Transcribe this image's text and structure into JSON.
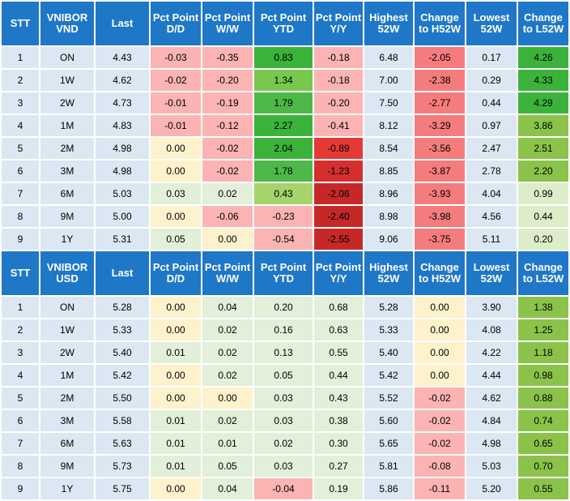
{
  "headers_vnd": [
    "STT",
    "VNIBOR VND",
    "Last",
    "Pct Point D/D",
    "Pct Point W/W",
    "Pct Point YTD",
    "Pct Point Y/Y",
    "Highest 52W",
    "Change to H52W",
    "Lowest 52W",
    "Change to L52W"
  ],
  "headers_usd": [
    "STT",
    "VNIBOR USD",
    "Last",
    "Pct Point D/D",
    "Pct Point W/W",
    "Pct Point YTD",
    "Pct Point Y/Y",
    "Highest 52W",
    "Change to H52W",
    "Lowest 52W",
    "Change to L52W"
  ],
  "header_color": "#1f77c7",
  "label_color": "#dbe7f3",
  "vnd_rows": [
    {
      "stt": "1",
      "tenor": "ON",
      "last": "4.43",
      "dd": "-0.03",
      "ww": "-0.35",
      "ytd": "0.83",
      "yy": "-0.18",
      "h52": "6.48",
      "ch52": "-2.05",
      "l52": "0.17",
      "cl52": "4.26"
    },
    {
      "stt": "2",
      "tenor": "1W",
      "last": "4.62",
      "dd": "-0.02",
      "ww": "-0.20",
      "ytd": "1.34",
      "yy": "-0.18",
      "h52": "7.00",
      "ch52": "-2.38",
      "l52": "0.29",
      "cl52": "4.33"
    },
    {
      "stt": "3",
      "tenor": "2W",
      "last": "4.73",
      "dd": "-0.01",
      "ww": "-0.19",
      "ytd": "1.79",
      "yy": "-0.20",
      "h52": "7.50",
      "ch52": "-2.77",
      "l52": "0.44",
      "cl52": "4.29"
    },
    {
      "stt": "4",
      "tenor": "1M",
      "last": "4.83",
      "dd": "-0.01",
      "ww": "-0.12",
      "ytd": "2.27",
      "yy": "-0.41",
      "h52": "8.12",
      "ch52": "-3.29",
      "l52": "0.97",
      "cl52": "3.86"
    },
    {
      "stt": "5",
      "tenor": "2M",
      "last": "4.98",
      "dd": "0.00",
      "ww": "-0.02",
      "ytd": "2.04",
      "yy": "-0.89",
      "h52": "8.54",
      "ch52": "-3.56",
      "l52": "2.47",
      "cl52": "2.51"
    },
    {
      "stt": "6",
      "tenor": "3M",
      "last": "4.98",
      "dd": "0.00",
      "ww": "-0.02",
      "ytd": "1.78",
      "yy": "-1.23",
      "h52": "8.85",
      "ch52": "-3.87",
      "l52": "2.78",
      "cl52": "2.20"
    },
    {
      "stt": "7",
      "tenor": "6M",
      "last": "5.03",
      "dd": "0.03",
      "ww": "0.02",
      "ytd": "0.43",
      "yy": "-2.06",
      "h52": "8.96",
      "ch52": "-3.93",
      "l52": "4.04",
      "cl52": "0.99"
    },
    {
      "stt": "8",
      "tenor": "9M",
      "last": "5.00",
      "dd": "0.00",
      "ww": "-0.06",
      "ytd": "-0.23",
      "yy": "-2.40",
      "h52": "8.98",
      "ch52": "-3.98",
      "l52": "4.56",
      "cl52": "0.44"
    },
    {
      "stt": "9",
      "tenor": "1Y",
      "last": "5.31",
      "dd": "0.05",
      "ww": "0.00",
      "ytd": "-0.54",
      "yy": "-2.55",
      "h52": "9.06",
      "ch52": "-3.75",
      "l52": "5.11",
      "cl52": "0.20"
    }
  ],
  "vnd_colors": [
    {
      "dd": "#fbb3b3",
      "ww": "#fbb3b3",
      "ytd": "#3bb33b",
      "yy": "#fbb3b3",
      "ch52": "#f47c7c",
      "cl52": "#3bb33b"
    },
    {
      "dd": "#fbb3b3",
      "ww": "#fbb3b3",
      "ytd": "#78c850",
      "yy": "#fbb3b3",
      "ch52": "#f47c7c",
      "cl52": "#3bb33b"
    },
    {
      "dd": "#fbb3b3",
      "ww": "#fbb3b3",
      "ytd": "#4db848",
      "yy": "#fbb3b3",
      "ch52": "#f47c7c",
      "cl52": "#3bb33b"
    },
    {
      "dd": "#fbb3b3",
      "ww": "#fbb3b3",
      "ytd": "#3bb33b",
      "yy": "#fbb3b3",
      "ch52": "#f47c7c",
      "cl52": "#8bc34a"
    },
    {
      "dd": "#fdf2cc",
      "ww": "#fbb3b3",
      "ytd": "#3bb33b",
      "yy": "#e53935",
      "ch52": "#f47c7c",
      "cl52": "#8bc34a"
    },
    {
      "dd": "#fdf2cc",
      "ww": "#fbb3b3",
      "ytd": "#4db848",
      "yy": "#d32f2f",
      "ch52": "#f47c7c",
      "cl52": "#8bc34a"
    },
    {
      "dd": "#e2efd9",
      "ww": "#e2efd9",
      "ytd": "#a5d46a",
      "yy": "#c62828",
      "ch52": "#f47c7c",
      "cl52": "#dcedc8"
    },
    {
      "dd": "#fdf2cc",
      "ww": "#fbb3b3",
      "ytd": "#fbb3b3",
      "yy": "#c62828",
      "ch52": "#f47c7c",
      "cl52": "#dcedc8"
    },
    {
      "dd": "#e2efd9",
      "ww": "#fdf2cc",
      "ytd": "#fbb3b3",
      "yy": "#c62828",
      "ch52": "#f47c7c",
      "cl52": "#dcedc8"
    }
  ],
  "usd_rows": [
    {
      "stt": "1",
      "tenor": "ON",
      "last": "5.28",
      "dd": "0.00",
      "ww": "0.04",
      "ytd": "0.20",
      "yy": "0.68",
      "h52": "5.28",
      "ch52": "0.00",
      "l52": "3.90",
      "cl52": "1.38"
    },
    {
      "stt": "2",
      "tenor": "1W",
      "last": "5.33",
      "dd": "0.00",
      "ww": "0.02",
      "ytd": "0.16",
      "yy": "0.63",
      "h52": "5.33",
      "ch52": "0.00",
      "l52": "4.08",
      "cl52": "1.25"
    },
    {
      "stt": "3",
      "tenor": "2W",
      "last": "5.40",
      "dd": "0.01",
      "ww": "0.02",
      "ytd": "0.13",
      "yy": "0.55",
      "h52": "5.40",
      "ch52": "0.00",
      "l52": "4.22",
      "cl52": "1.18"
    },
    {
      "stt": "4",
      "tenor": "1M",
      "last": "5.42",
      "dd": "0.00",
      "ww": "0.02",
      "ytd": "0.05",
      "yy": "0.44",
      "h52": "5.42",
      "ch52": "0.00",
      "l52": "4.44",
      "cl52": "0.98"
    },
    {
      "stt": "5",
      "tenor": "2M",
      "last": "5.50",
      "dd": "0.00",
      "ww": "0.00",
      "ytd": "0.03",
      "yy": "0.43",
      "h52": "5.52",
      "ch52": "-0.02",
      "l52": "4.62",
      "cl52": "0.88"
    },
    {
      "stt": "6",
      "tenor": "3M",
      "last": "5.58",
      "dd": "0.01",
      "ww": "0.02",
      "ytd": "0.03",
      "yy": "0.38",
      "h52": "5.60",
      "ch52": "-0.02",
      "l52": "4.84",
      "cl52": "0.74"
    },
    {
      "stt": "7",
      "tenor": "6M",
      "last": "5.63",
      "dd": "0.01",
      "ww": "0.01",
      "ytd": "0.02",
      "yy": "0.30",
      "h52": "5.65",
      "ch52": "-0.02",
      "l52": "4.98",
      "cl52": "0.65"
    },
    {
      "stt": "8",
      "tenor": "9M",
      "last": "5.73",
      "dd": "0.01",
      "ww": "0.05",
      "ytd": "0.03",
      "yy": "0.27",
      "h52": "5.81",
      "ch52": "-0.08",
      "l52": "5.03",
      "cl52": "0.70"
    },
    {
      "stt": "9",
      "tenor": "1Y",
      "last": "5.75",
      "dd": "0.00",
      "ww": "0.04",
      "ytd": "-0.04",
      "yy": "0.19",
      "h52": "5.86",
      "ch52": "-0.11",
      "l52": "5.20",
      "cl52": "0.55"
    }
  ],
  "usd_colors": [
    {
      "dd": "#fdf2cc",
      "ww": "#e2efd9",
      "ytd": "#e2efd9",
      "yy": "#e2efd9",
      "ch52": "#fdf2cc",
      "cl52": "#8bc34a"
    },
    {
      "dd": "#fdf2cc",
      "ww": "#e2efd9",
      "ytd": "#e2efd9",
      "yy": "#e2efd9",
      "ch52": "#fdf2cc",
      "cl52": "#8bc34a"
    },
    {
      "dd": "#e2efd9",
      "ww": "#e2efd9",
      "ytd": "#e2efd9",
      "yy": "#e2efd9",
      "ch52": "#fdf2cc",
      "cl52": "#8bc34a"
    },
    {
      "dd": "#fdf2cc",
      "ww": "#e2efd9",
      "ytd": "#e2efd9",
      "yy": "#e2efd9",
      "ch52": "#fdf2cc",
      "cl52": "#8bc34a"
    },
    {
      "dd": "#fdf2cc",
      "ww": "#fdf2cc",
      "ytd": "#e2efd9",
      "yy": "#e2efd9",
      "ch52": "#fbb3b3",
      "cl52": "#8bc34a"
    },
    {
      "dd": "#e2efd9",
      "ww": "#e2efd9",
      "ytd": "#e2efd9",
      "yy": "#e2efd9",
      "ch52": "#fbb3b3",
      "cl52": "#8bc34a"
    },
    {
      "dd": "#e2efd9",
      "ww": "#e2efd9",
      "ytd": "#e2efd9",
      "yy": "#e2efd9",
      "ch52": "#fbb3b3",
      "cl52": "#8bc34a"
    },
    {
      "dd": "#e2efd9",
      "ww": "#e2efd9",
      "ytd": "#e2efd9",
      "yy": "#e2efd9",
      "ch52": "#fbb3b3",
      "cl52": "#8bc34a"
    },
    {
      "dd": "#fdf2cc",
      "ww": "#e2efd9",
      "ytd": "#fbb3b3",
      "yy": "#e2efd9",
      "ch52": "#fbb3b3",
      "cl52": "#8bc34a"
    }
  ]
}
